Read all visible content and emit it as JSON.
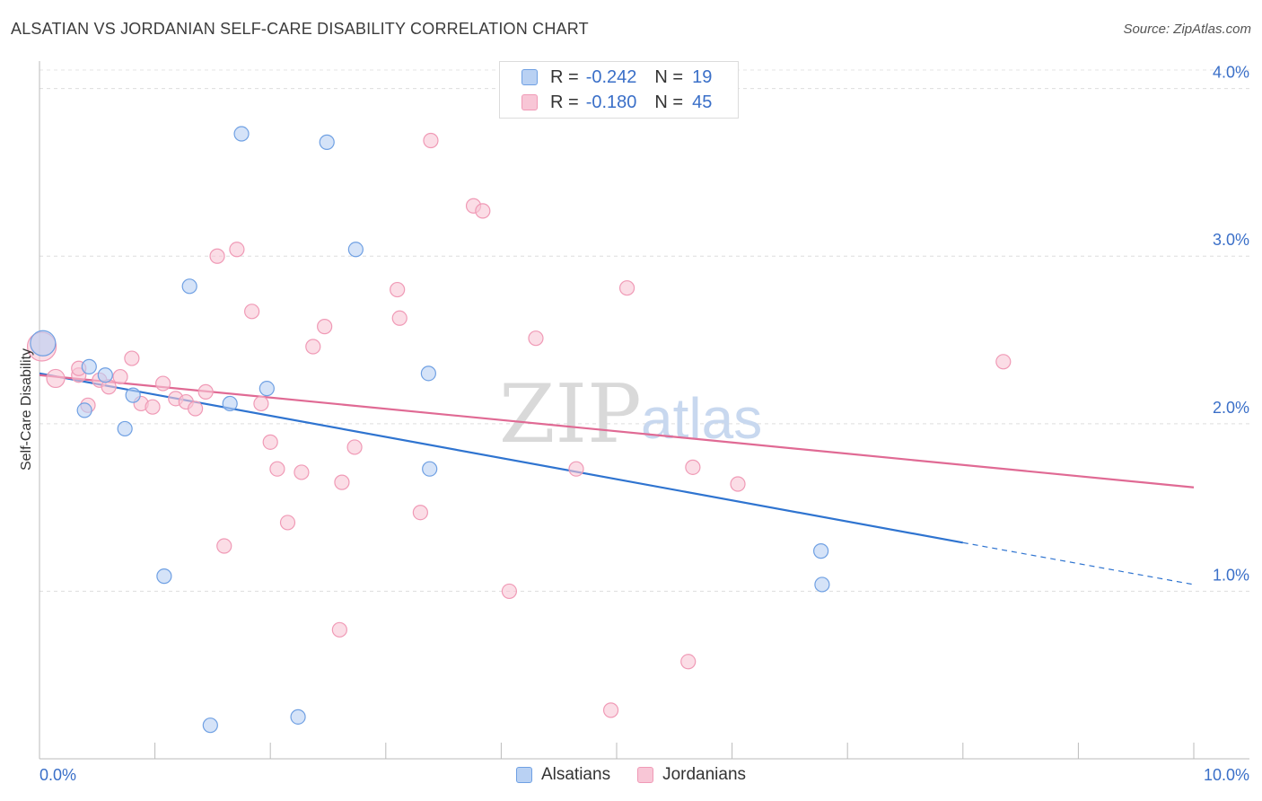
{
  "chart_data": {
    "type": "scatter",
    "title": "ALSATIAN VS JORDANIAN SELF-CARE DISABILITY CORRELATION CHART",
    "source": "Source: ZipAtlas.com",
    "xlabel": "",
    "ylabel": "Self-Care Disability",
    "xlim": [
      0,
      10
    ],
    "ylim": [
      0,
      4.1
    ],
    "x_tick_labels": [
      "0.0%",
      "10.0%"
    ],
    "y_ticks": [
      1.0,
      2.0,
      3.0,
      4.0
    ],
    "y_tick_labels": [
      "1.0%",
      "2.0%",
      "3.0%",
      "4.0%"
    ],
    "grid": "horizontal dashed",
    "watermark": {
      "zip": "ZIP",
      "atlas": "atlas"
    },
    "legend": {
      "r_label": "R =",
      "n_label": "N =",
      "entries": [
        {
          "name": "Alsatians",
          "r": "-0.242",
          "n": "19"
        },
        {
          "name": "Jordanians",
          "r": "-0.180",
          "n": "45"
        }
      ]
    },
    "series": [
      {
        "name": "Alsatians",
        "color": "#6fa0e3",
        "fill": "#b9d1f3",
        "line_color": "#2f74d0",
        "trend": {
          "x0": 0.0,
          "y0": 2.3,
          "x1": 8.0,
          "y1": 1.29,
          "dash_to_x": 10.0,
          "dash_to_y": 1.04
        },
        "points": [
          [
            0.03,
            2.48,
            14
          ],
          [
            0.43,
            2.34,
            8
          ],
          [
            0.57,
            2.29,
            8
          ],
          [
            0.39,
            2.08,
            8
          ],
          [
            0.81,
            2.17,
            8
          ],
          [
            0.74,
            1.97,
            8
          ],
          [
            1.08,
            1.09,
            8
          ],
          [
            1.3,
            2.82,
            8
          ],
          [
            1.75,
            3.73,
            8
          ],
          [
            1.65,
            2.12,
            8
          ],
          [
            1.97,
            2.21,
            8
          ],
          [
            2.49,
            3.68,
            8
          ],
          [
            2.74,
            3.04,
            8
          ],
          [
            3.37,
            2.3,
            8
          ],
          [
            3.38,
            1.73,
            8
          ],
          [
            1.48,
            0.2,
            8
          ],
          [
            2.24,
            0.25,
            8
          ],
          [
            6.78,
            1.04,
            8
          ],
          [
            6.77,
            1.24,
            8
          ]
        ]
      },
      {
        "name": "Jordanians",
        "color": "#f09ab6",
        "fill": "#f8c6d6",
        "line_color": "#e06a94",
        "trend": {
          "x0": 0.0,
          "y0": 2.29,
          "x1": 10.0,
          "y1": 1.62
        },
        "points": [
          [
            0.02,
            2.46,
            16
          ],
          [
            0.14,
            2.27,
            10
          ],
          [
            0.34,
            2.29,
            8
          ],
          [
            0.34,
            2.33,
            8
          ],
          [
            0.42,
            2.11,
            8
          ],
          [
            0.52,
            2.26,
            8
          ],
          [
            0.6,
            2.22,
            8
          ],
          [
            0.7,
            2.28,
            8
          ],
          [
            0.8,
            2.39,
            8
          ],
          [
            0.88,
            2.12,
            8
          ],
          [
            0.98,
            2.1,
            8
          ],
          [
            1.07,
            2.24,
            8
          ],
          [
            1.18,
            2.15,
            8
          ],
          [
            1.27,
            2.13,
            8
          ],
          [
            1.35,
            2.09,
            8
          ],
          [
            1.44,
            2.19,
            8
          ],
          [
            1.54,
            3.0,
            8
          ],
          [
            1.71,
            3.04,
            8
          ],
          [
            1.84,
            2.67,
            8
          ],
          [
            1.92,
            2.12,
            8
          ],
          [
            2.0,
            1.89,
            8
          ],
          [
            2.06,
            1.73,
            8
          ],
          [
            2.15,
            1.41,
            8
          ],
          [
            2.27,
            1.71,
            8
          ],
          [
            2.37,
            2.46,
            8
          ],
          [
            2.47,
            2.58,
            8
          ],
          [
            2.62,
            1.65,
            8
          ],
          [
            2.73,
            1.86,
            8
          ],
          [
            3.1,
            2.8,
            8
          ],
          [
            3.12,
            2.63,
            8
          ],
          [
            3.3,
            1.47,
            8
          ],
          [
            3.39,
            3.69,
            8
          ],
          [
            3.76,
            3.3,
            8
          ],
          [
            3.84,
            3.27,
            8
          ],
          [
            4.07,
            1.0,
            8
          ],
          [
            4.3,
            2.51,
            8
          ],
          [
            4.65,
            1.73,
            8
          ],
          [
            4.95,
            0.29,
            8
          ],
          [
            5.09,
            2.81,
            8
          ],
          [
            5.62,
            0.58,
            8
          ],
          [
            5.66,
            1.74,
            8
          ],
          [
            6.05,
            1.64,
            8
          ],
          [
            8.35,
            2.37,
            8
          ],
          [
            1.6,
            1.27,
            8
          ],
          [
            2.6,
            0.77,
            8
          ]
        ]
      }
    ]
  }
}
